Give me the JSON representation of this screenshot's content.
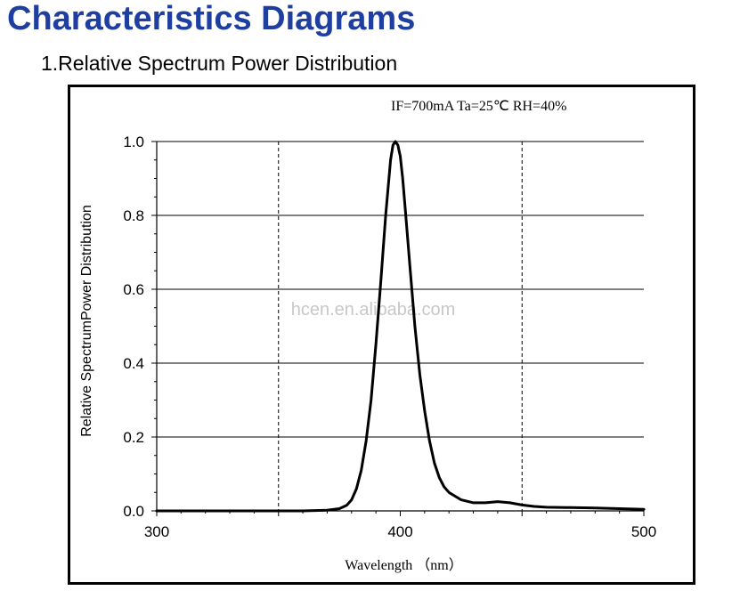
{
  "page": {
    "heading": "Characteristics Diagrams",
    "subheading": "1.Relative Spectrum Power Distribution",
    "watermark": "hcen.en.alibaba.com",
    "heading_color": "#1f3fa0"
  },
  "chart_data": {
    "type": "line",
    "annotation": "IF=700mA Ta=25℃ RH=40%",
    "xlabel": "Wavelength （nm）",
    "ylabel": "Relative SpectrumPower Distribution",
    "xlim": [
      300,
      500
    ],
    "ylim": [
      0,
      1.0
    ],
    "x_ticks": [
      300,
      400,
      500
    ],
    "x_tick_labels": [
      "300",
      "400",
      "500"
    ],
    "y_ticks": [
      0.0,
      0.2,
      0.4,
      0.6,
      0.8,
      1.0
    ],
    "y_tick_labels": [
      "0.0",
      "0.2",
      "0.4",
      "0.6",
      "0.8",
      "1.0"
    ],
    "grid": {
      "horizontal": true,
      "vertical_dashed": [
        350,
        450
      ]
    },
    "series": [
      {
        "x": [
          300,
          360,
          370,
          375,
          378,
          380,
          382,
          384,
          386,
          388,
          390,
          392,
          394,
          396,
          397,
          398,
          399,
          400,
          401,
          402,
          404,
          406,
          408,
          410,
          412,
          414,
          416,
          418,
          420,
          425,
          430,
          435,
          440,
          445,
          450,
          455,
          460,
          470,
          480,
          490,
          500
        ],
        "y": [
          0.0,
          0.0,
          0.002,
          0.006,
          0.015,
          0.03,
          0.06,
          0.11,
          0.19,
          0.3,
          0.45,
          0.62,
          0.8,
          0.95,
          0.99,
          1.0,
          0.99,
          0.96,
          0.9,
          0.82,
          0.66,
          0.5,
          0.37,
          0.27,
          0.19,
          0.13,
          0.09,
          0.065,
          0.05,
          0.03,
          0.022,
          0.022,
          0.025,
          0.022,
          0.016,
          0.012,
          0.01,
          0.009,
          0.008,
          0.006,
          0.004
        ]
      }
    ]
  }
}
